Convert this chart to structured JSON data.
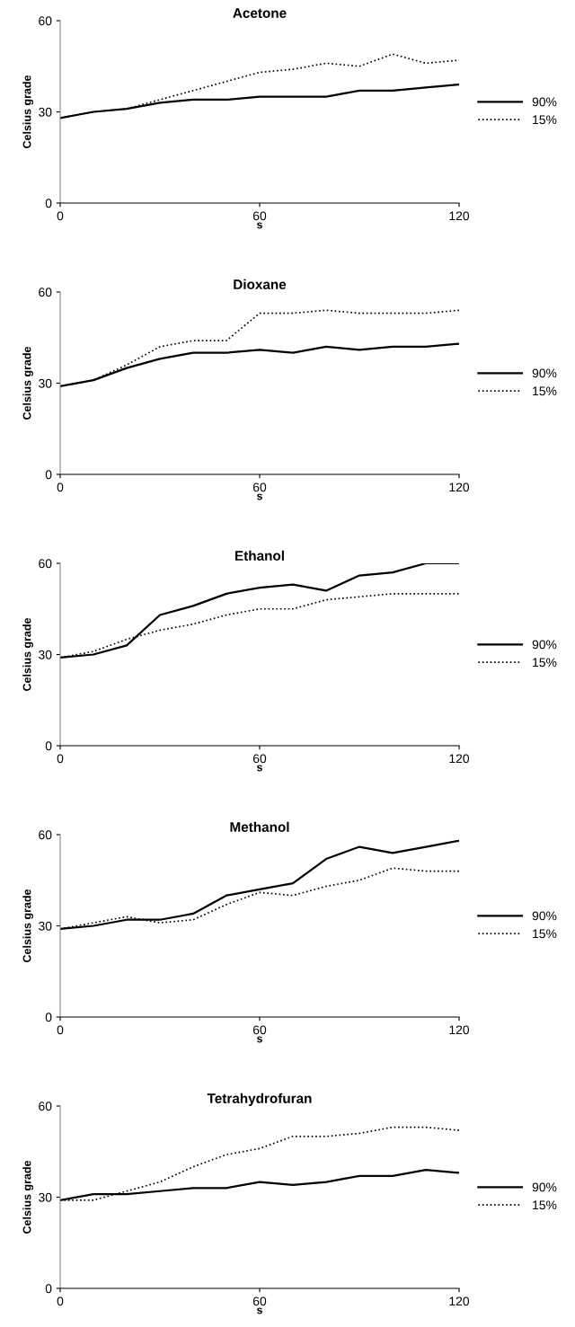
{
  "chart_data": [
    {
      "type": "line",
      "title": "Acetone",
      "xlabel": "s",
      "ylabel": "Celsius grade",
      "x": [
        0,
        10,
        20,
        30,
        40,
        50,
        60,
        70,
        80,
        90,
        100,
        110,
        120
      ],
      "xlim": [
        0,
        120
      ],
      "xticks": [
        0,
        60,
        120
      ],
      "ylim": [
        0,
        60
      ],
      "yticks": [
        0,
        30,
        60
      ],
      "grid": false,
      "legend": "right",
      "series": [
        {
          "name": "90%",
          "color": "#000000",
          "line_style": "solid",
          "values": [
            28,
            30,
            31,
            33,
            34,
            34,
            35,
            35,
            35,
            37,
            37,
            38,
            39
          ]
        },
        {
          "name": "15%",
          "color": "#000000",
          "line_style": "dotted",
          "values": [
            28,
            30,
            31,
            34,
            37,
            40,
            43,
            44,
            46,
            45,
            49,
            46,
            47
          ]
        }
      ]
    },
    {
      "type": "line",
      "title": "Dioxane",
      "xlabel": "s",
      "ylabel": "Celsius grade",
      "x": [
        0,
        10,
        20,
        30,
        40,
        50,
        60,
        70,
        80,
        90,
        100,
        110,
        120
      ],
      "xlim": [
        0,
        120
      ],
      "xticks": [
        0,
        60,
        120
      ],
      "ylim": [
        0,
        60
      ],
      "yticks": [
        0,
        30,
        60
      ],
      "grid": false,
      "legend": "right",
      "series": [
        {
          "name": "90%",
          "color": "#000000",
          "line_style": "solid",
          "values": [
            29,
            31,
            35,
            38,
            40,
            40,
            41,
            40,
            42,
            41,
            42,
            42,
            43
          ]
        },
        {
          "name": "15%",
          "color": "#000000",
          "line_style": "dotted",
          "values": [
            29,
            31,
            36,
            42,
            44,
            44,
            53,
            53,
            54,
            53,
            53,
            53,
            54
          ]
        }
      ]
    },
    {
      "type": "line",
      "title": "Ethanol",
      "xlabel": "s",
      "ylabel": "Celsius grade",
      "x": [
        0,
        10,
        20,
        30,
        40,
        50,
        60,
        70,
        80,
        90,
        100,
        110,
        120
      ],
      "xlim": [
        0,
        120
      ],
      "xticks": [
        0,
        60,
        120
      ],
      "ylim": [
        0,
        60
      ],
      "yticks": [
        0,
        30,
        60
      ],
      "grid": false,
      "legend": "right",
      "series": [
        {
          "name": "90%",
          "color": "#000000",
          "line_style": "solid",
          "values": [
            29,
            30,
            33,
            43,
            46,
            50,
            52,
            53,
            51,
            56,
            57,
            60,
            60
          ]
        },
        {
          "name": "15%",
          "color": "#000000",
          "line_style": "dotted",
          "values": [
            29,
            31,
            35,
            38,
            40,
            43,
            45,
            45,
            48,
            49,
            50,
            50,
            50
          ]
        }
      ]
    },
    {
      "type": "line",
      "title": "Methanol",
      "xlabel": "s",
      "ylabel": "Celsius grade",
      "x": [
        0,
        10,
        20,
        30,
        40,
        50,
        60,
        70,
        80,
        90,
        100,
        110,
        120
      ],
      "xlim": [
        0,
        120
      ],
      "xticks": [
        0,
        60,
        120
      ],
      "ylim": [
        0,
        60
      ],
      "yticks": [
        0,
        30,
        60
      ],
      "grid": false,
      "legend": "right",
      "series": [
        {
          "name": "90%",
          "color": "#000000",
          "line_style": "solid",
          "values": [
            29,
            30,
            32,
            32,
            34,
            40,
            42,
            44,
            52,
            56,
            54,
            56,
            58
          ]
        },
        {
          "name": "15%",
          "color": "#000000",
          "line_style": "dotted",
          "values": [
            29,
            31,
            33,
            31,
            32,
            37,
            41,
            40,
            43,
            45,
            49,
            48,
            48
          ]
        }
      ]
    },
    {
      "type": "line",
      "title": "Tetrahydrofuran",
      "xlabel": "s",
      "ylabel": "Celsius grade",
      "x": [
        0,
        10,
        20,
        30,
        40,
        50,
        60,
        70,
        80,
        90,
        100,
        110,
        120
      ],
      "xlim": [
        0,
        120
      ],
      "xticks": [
        0,
        60,
        120
      ],
      "ylim": [
        0,
        60
      ],
      "yticks": [
        0,
        30,
        60
      ],
      "grid": false,
      "legend": "right",
      "series": [
        {
          "name": "90%",
          "color": "#000000",
          "line_style": "solid",
          "values": [
            29,
            31,
            31,
            32,
            33,
            33,
            35,
            34,
            35,
            37,
            37,
            39,
            38
          ]
        },
        {
          "name": "15%",
          "color": "#000000",
          "line_style": "dotted",
          "values": [
            29,
            29,
            32,
            35,
            40,
            44,
            46,
            50,
            50,
            51,
            53,
            53,
            52
          ]
        }
      ]
    }
  ]
}
